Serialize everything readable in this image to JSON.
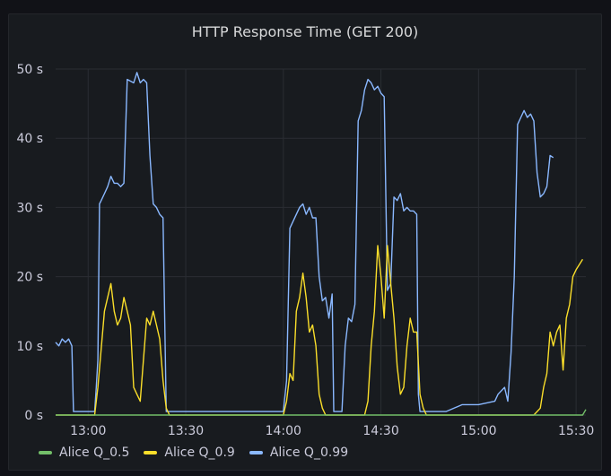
{
  "panel": {
    "title": "HTTP Response Time (GET 200)"
  },
  "chart_data": {
    "type": "line",
    "title": "HTTP Response Time (GET 200)",
    "xlabel": "",
    "ylabel": "",
    "x_unit": "minutes since 12:00",
    "xlim": [
      50,
      213
    ],
    "ylim": [
      0,
      50
    ],
    "y_ticks": [
      0,
      10,
      20,
      30,
      40,
      50
    ],
    "y_tick_labels": [
      "0 s",
      "10 s",
      "20 s",
      "30 s",
      "40 s",
      "50 s"
    ],
    "x_ticks": [
      60,
      90,
      120,
      150,
      180,
      210
    ],
    "x_tick_labels": [
      "13:00",
      "13:30",
      "14:00",
      "14:30",
      "15:00",
      "15:30"
    ],
    "grid": true,
    "legend_position": "bottom-left",
    "series": [
      {
        "name": "Alice Q_0.5",
        "color": "#73bf69",
        "points": [
          [
            50,
            0
          ],
          [
            212,
            0
          ],
          [
            213,
            0.8
          ]
        ]
      },
      {
        "name": "Alice Q_0.9",
        "color": "#fade2a",
        "points": [
          [
            50,
            0
          ],
          [
            60,
            0
          ],
          [
            62,
            0
          ],
          [
            63,
            4
          ],
          [
            65,
            15
          ],
          [
            66,
            17
          ],
          [
            67,
            19
          ],
          [
            68,
            15
          ],
          [
            69,
            13
          ],
          [
            70,
            14
          ],
          [
            71,
            17
          ],
          [
            72,
            15
          ],
          [
            73,
            13
          ],
          [
            74,
            4
          ],
          [
            75,
            3
          ],
          [
            76,
            2
          ],
          [
            77,
            8
          ],
          [
            78,
            14
          ],
          [
            79,
            13
          ],
          [
            80,
            15
          ],
          [
            81,
            13
          ],
          [
            82,
            11
          ],
          [
            83,
            5
          ],
          [
            84,
            1
          ],
          [
            85,
            0
          ],
          [
            100,
            0
          ],
          [
            120,
            0
          ],
          [
            121,
            2
          ],
          [
            122,
            6
          ],
          [
            123,
            5
          ],
          [
            124,
            15
          ],
          [
            125,
            17
          ],
          [
            126,
            20.5
          ],
          [
            127,
            17
          ],
          [
            128,
            12
          ],
          [
            129,
            13
          ],
          [
            130,
            10
          ],
          [
            131,
            3
          ],
          [
            132,
            1
          ],
          [
            133,
            0
          ],
          [
            145,
            0
          ],
          [
            146,
            2
          ],
          [
            147,
            10
          ],
          [
            148,
            15
          ],
          [
            149,
            24.5
          ],
          [
            150,
            20
          ],
          [
            151,
            14
          ],
          [
            152,
            24.5
          ],
          [
            153,
            19
          ],
          [
            154,
            14
          ],
          [
            155,
            7
          ],
          [
            156,
            3
          ],
          [
            157,
            4
          ],
          [
            158,
            10
          ],
          [
            159,
            14
          ],
          [
            160,
            12
          ],
          [
            161,
            12
          ],
          [
            162,
            3
          ],
          [
            163,
            1
          ],
          [
            164,
            0
          ],
          [
            197,
            0
          ],
          [
            199,
            1
          ],
          [
            200,
            4
          ],
          [
            201,
            6
          ],
          [
            202,
            12
          ],
          [
            203,
            10
          ],
          [
            204,
            12
          ],
          [
            205,
            13
          ],
          [
            206,
            6.5
          ],
          [
            207,
            14
          ],
          [
            208,
            16
          ],
          [
            209,
            20
          ],
          [
            210,
            21
          ],
          [
            212,
            22.5
          ]
        ]
      },
      {
        "name": "Alice Q_0.99",
        "color": "#8ab8ff",
        "points": [
          [
            50,
            10.5
          ],
          [
            51,
            10
          ],
          [
            52,
            11
          ],
          [
            53,
            10.5
          ],
          [
            54,
            11
          ],
          [
            55,
            10
          ],
          [
            55.5,
            0.5
          ],
          [
            59,
            0.5
          ],
          [
            60,
            0.5
          ],
          [
            61,
            0.5
          ],
          [
            62,
            0.5
          ],
          [
            62.5,
            4
          ],
          [
            63,
            8
          ],
          [
            63.5,
            30.5
          ],
          [
            64,
            31
          ],
          [
            65,
            32
          ],
          [
            66,
            33
          ],
          [
            67,
            34.5
          ],
          [
            68,
            33.5
          ],
          [
            69,
            33.5
          ],
          [
            70,
            33
          ],
          [
            71,
            33.5
          ],
          [
            72,
            48.5
          ],
          [
            74,
            48
          ],
          [
            75,
            49.5
          ],
          [
            76,
            48
          ],
          [
            77,
            48.5
          ],
          [
            78,
            48
          ],
          [
            79,
            37.5
          ],
          [
            80,
            30.5
          ],
          [
            81,
            30
          ],
          [
            82,
            29
          ],
          [
            83,
            28.5
          ],
          [
            84,
            0.5
          ],
          [
            120,
            0.5
          ],
          [
            121,
            5
          ],
          [
            122,
            27
          ],
          [
            123,
            28
          ],
          [
            124,
            29
          ],
          [
            125,
            30
          ],
          [
            126,
            30.5
          ],
          [
            127,
            29
          ],
          [
            128,
            30
          ],
          [
            129,
            28.5
          ],
          [
            130,
            28.5
          ],
          [
            131,
            20
          ],
          [
            132,
            16.5
          ],
          [
            133,
            17
          ],
          [
            134,
            14
          ],
          [
            135,
            17.5
          ],
          [
            135.5,
            0.5
          ],
          [
            138,
            0.5
          ],
          [
            139,
            10
          ],
          [
            140,
            14
          ],
          [
            141,
            13.5
          ],
          [
            142,
            16
          ],
          [
            143,
            42.5
          ],
          [
            144,
            44
          ],
          [
            145,
            47
          ],
          [
            146,
            48.5
          ],
          [
            147,
            48
          ],
          [
            148,
            47
          ],
          [
            149,
            47.5
          ],
          [
            150,
            46.5
          ],
          [
            151,
            46
          ],
          [
            152,
            18
          ],
          [
            153,
            19
          ],
          [
            154,
            31.5
          ],
          [
            155,
            31
          ],
          [
            156,
            32
          ],
          [
            157,
            29.5
          ],
          [
            158,
            30
          ],
          [
            159,
            29.5
          ],
          [
            160,
            29.5
          ],
          [
            161,
            29
          ],
          [
            161.5,
            3
          ],
          [
            162,
            0.5
          ],
          [
            170,
            0.5
          ],
          [
            175,
            1.5
          ],
          [
            180,
            1.5
          ],
          [
            185,
            2
          ],
          [
            186,
            3
          ],
          [
            188,
            4
          ],
          [
            189,
            2
          ],
          [
            190,
            9
          ],
          [
            191,
            20
          ],
          [
            192,
            42
          ],
          [
            193,
            43
          ],
          [
            194,
            44
          ],
          [
            195,
            43
          ],
          [
            196,
            43.5
          ],
          [
            197,
            42.5
          ],
          [
            198,
            35
          ],
          [
            199,
            31.5
          ],
          [
            200,
            32
          ],
          [
            201,
            33
          ],
          [
            202,
            37.5
          ],
          [
            203,
            37.2
          ]
        ]
      }
    ]
  }
}
